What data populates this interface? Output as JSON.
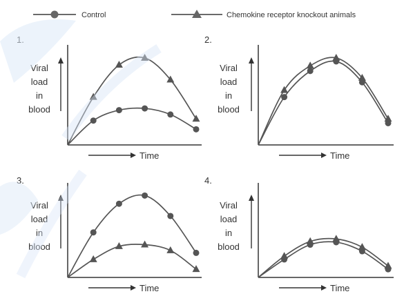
{
  "legend": {
    "control": "Control",
    "knockout": "Chemokine receptor knockout animals"
  },
  "colors": {
    "line": "#555555",
    "marker": "#555555",
    "axis": "#333333",
    "text": "#333333",
    "watermark": "#cfe0f6"
  },
  "chart_data": [
    {
      "type": "line",
      "panel_label": "1.",
      "ylabel": [
        "Viral",
        "load",
        "in",
        "blood"
      ],
      "xlabel": "Time",
      "x": [
        0,
        1,
        2,
        3,
        4,
        5
      ],
      "series": [
        {
          "name": "Control",
          "marker": "circle",
          "values": [
            0,
            0.28,
            0.4,
            0.42,
            0.35,
            0.18
          ]
        },
        {
          "name": "Chemokine receptor knockout animals",
          "marker": "triangle",
          "values": [
            0,
            0.55,
            0.92,
            1.0,
            0.75,
            0.3
          ]
        }
      ]
    },
    {
      "type": "line",
      "panel_label": "2.",
      "ylabel": [
        "Viral",
        "load",
        "in",
        "blood"
      ],
      "xlabel": "Time",
      "x": [
        0,
        1,
        2,
        3,
        4,
        5
      ],
      "series": [
        {
          "name": "Control",
          "marker": "circle",
          "values": [
            0,
            0.55,
            0.85,
            0.96,
            0.72,
            0.25
          ]
        },
        {
          "name": "Chemokine receptor knockout animals",
          "marker": "triangle",
          "values": [
            0,
            0.63,
            0.91,
            1.0,
            0.77,
            0.3
          ]
        }
      ]
    },
    {
      "type": "line",
      "panel_label": "3.",
      "ylabel": [
        "Viral",
        "load",
        "in",
        "blood"
      ],
      "xlabel": "Time",
      "x": [
        0,
        1,
        2,
        3,
        4,
        5
      ],
      "series": [
        {
          "name": "Control",
          "marker": "circle",
          "values": [
            0,
            0.55,
            0.9,
            1.0,
            0.75,
            0.3
          ]
        },
        {
          "name": "Chemokine receptor knockout animals",
          "marker": "triangle",
          "values": [
            0,
            0.22,
            0.38,
            0.4,
            0.33,
            0.1
          ]
        }
      ]
    },
    {
      "type": "line",
      "panel_label": "4.",
      "ylabel": [
        "Viral",
        "load",
        "in",
        "blood"
      ],
      "xlabel": "Time",
      "x": [
        0,
        1,
        2,
        3,
        4,
        5
      ],
      "series": [
        {
          "name": "Control",
          "marker": "circle",
          "values": [
            0,
            0.22,
            0.4,
            0.43,
            0.32,
            0.1
          ]
        },
        {
          "name": "Chemokine receptor knockout animals",
          "marker": "triangle",
          "values": [
            0,
            0.26,
            0.44,
            0.47,
            0.37,
            0.14
          ]
        }
      ]
    }
  ]
}
